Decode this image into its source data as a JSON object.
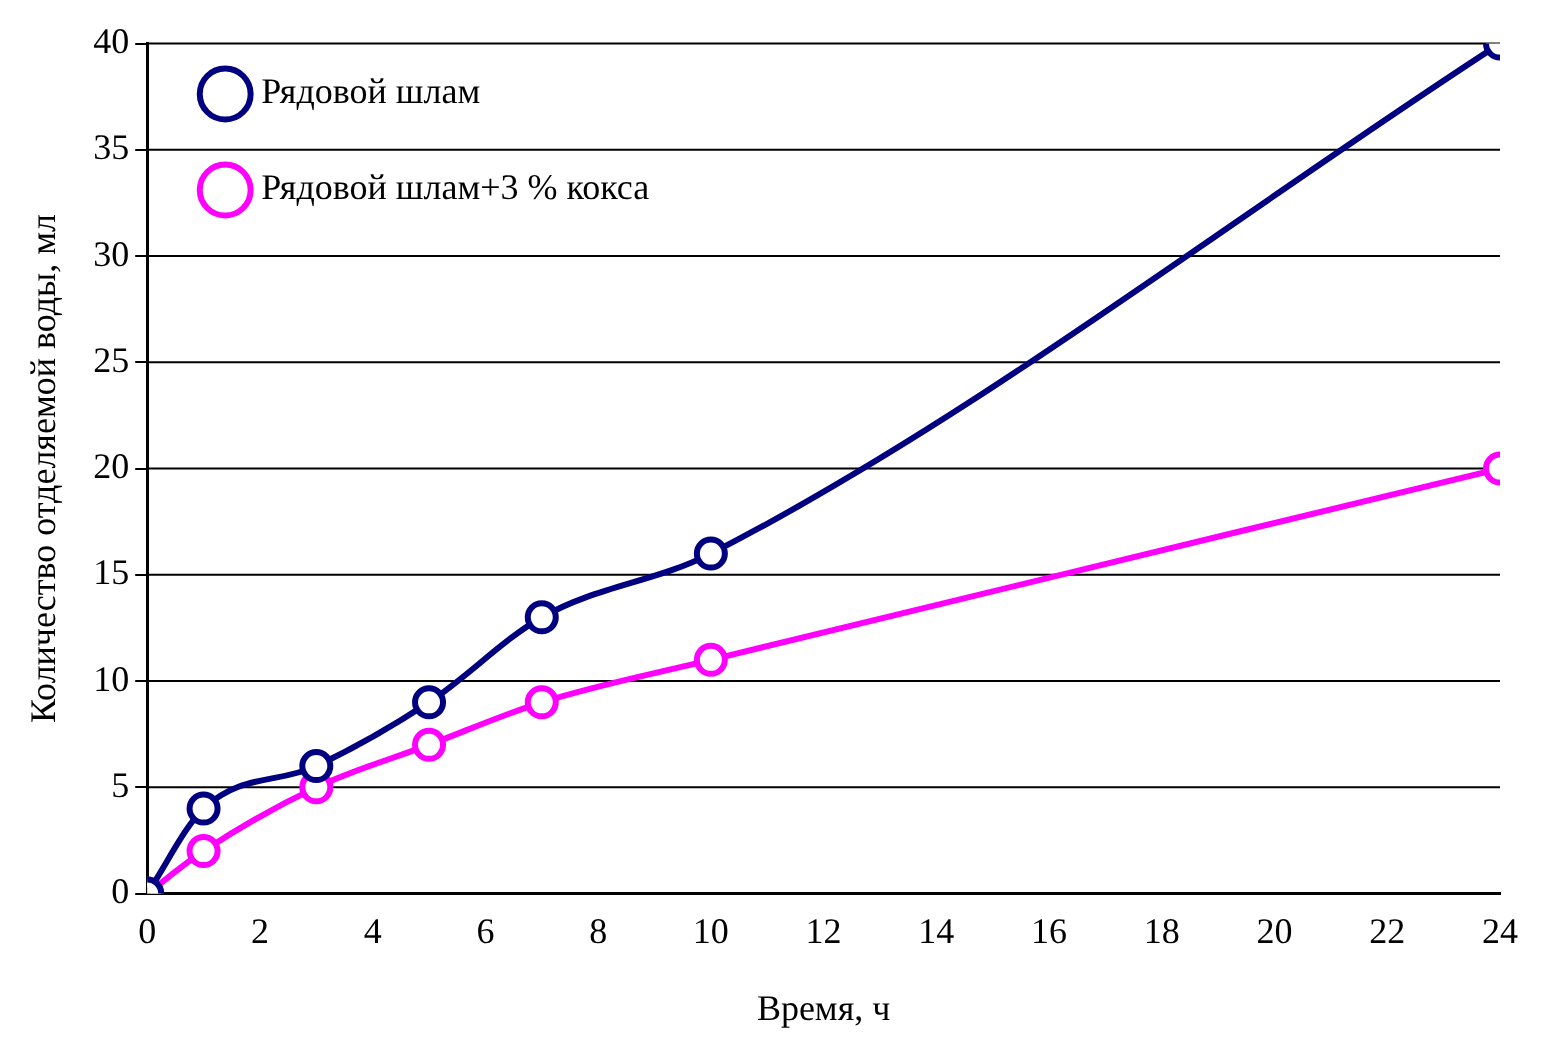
{
  "chart_data": {
    "type": "line",
    "xlabel": "Время, ч",
    "ylabel": "Количество отделяемой воды, мл",
    "x": [
      0,
      1,
      3,
      5,
      7,
      10,
      24
    ],
    "series": [
      {
        "name": "Рядовой шлам",
        "color": "#000080",
        "values": [
          0,
          4,
          6,
          9,
          13,
          16,
          40
        ]
      },
      {
        "name": "Рядовой шлам+3 % кокса",
        "color": "#ff00ff",
        "values": [
          0,
          2,
          5,
          7,
          9,
          11,
          20
        ]
      }
    ],
    "xlim": [
      0,
      24
    ],
    "xticks": [
      0,
      2,
      4,
      6,
      8,
      10,
      12,
      14,
      16,
      18,
      20,
      22,
      24
    ],
    "ylim": [
      0,
      40
    ],
    "yticks": [
      0,
      5,
      10,
      15,
      20,
      25,
      30,
      35,
      40
    ],
    "grid": "y",
    "legend": "top left",
    "marker": "circle",
    "line_style": "solid"
  }
}
